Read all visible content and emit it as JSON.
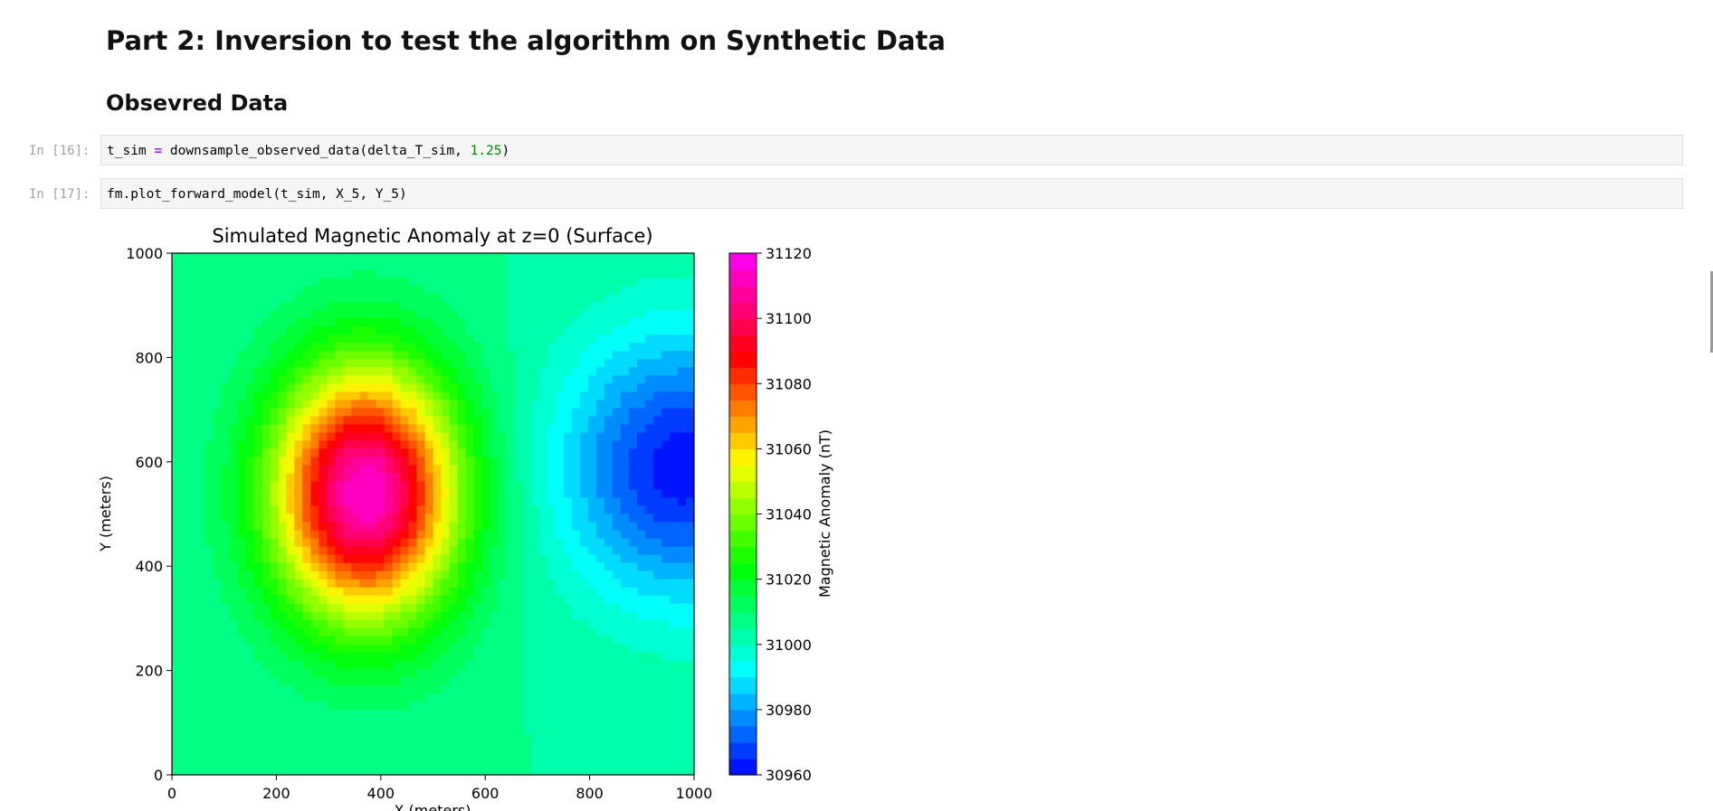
{
  "notebook": {
    "heading": "Part 2: Inversion to test the algorithm on Synthetic Data",
    "subheading": "Obsevred Data",
    "cells": [
      {
        "prompt": "In [16]:",
        "code": {
          "var": "t_sim",
          "op": "=",
          "call": "downsample_observed_data(delta_T_sim, ",
          "num": "1.25",
          "close": ")"
        }
      },
      {
        "prompt": "In [17]:",
        "code": {
          "text": "fm.plot_forward_model(t_sim, X_5, Y_5)"
        }
      }
    ]
  },
  "colors": {
    "code_bg": "#f5f5f5",
    "operator": "#aa22ff",
    "number": "#008800",
    "prompt": "#a0a0a0"
  },
  "chart_data": {
    "type": "heatmap",
    "title": "Simulated Magnetic Anomaly at z=0 (Surface)",
    "xlabel": "X (meters)",
    "ylabel": "Y (meters)",
    "xlim": [
      0,
      1000
    ],
    "ylim": [
      0,
      1000
    ],
    "xticks": [
      "0",
      "200",
      "400",
      "600",
      "800",
      "1000"
    ],
    "yticks": [
      "0",
      "200",
      "400",
      "600",
      "800",
      "1000"
    ],
    "colorbar": {
      "label": "Magnetic Anomaly (nT)",
      "range": [
        30960,
        31120
      ],
      "ticks": [
        "30960",
        "30980",
        "31000",
        "31020",
        "31040",
        "31060",
        "31080",
        "31100",
        "31120"
      ],
      "colormap": "gist_rainbow_r",
      "levels": 32
    },
    "features": [
      {
        "type": "high",
        "x": 370,
        "y": 540,
        "value": 31115
      },
      {
        "type": "low",
        "x": 980,
        "y": 590,
        "value": 30962
      }
    ],
    "background_value": 31005,
    "grid": false
  }
}
